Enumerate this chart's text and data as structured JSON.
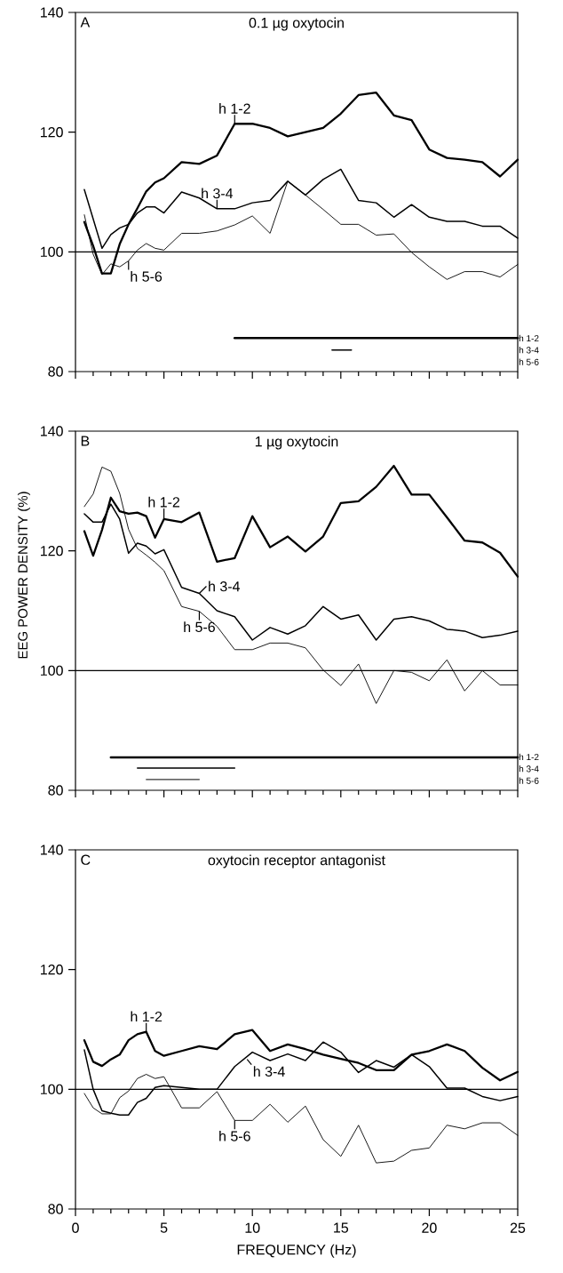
{
  "chart_data": [
    {
      "type": "line",
      "title": "0.1 µg oxytocin",
      "tick_labels": "y",
      "marker": "none",
      "x": [
        0.5,
        1,
        1.5,
        2,
        2.5,
        3,
        3.5,
        4,
        4.5,
        5,
        6,
        7,
        8,
        9,
        10,
        11,
        12,
        13,
        14,
        15,
        16,
        17,
        18,
        19,
        20,
        21,
        22,
        23,
        24,
        25
      ],
      "xlim": [
        0,
        25
      ],
      "ylim": [
        80,
        140
      ],
      "xticks": [
        0,
        {
          "value": 1,
          "label": null
        },
        {
          "value": 2,
          "label": null
        },
        {
          "value": 3,
          "label": null
        },
        {
          "value": 4,
          "label": null
        },
        5,
        {
          "value": 6,
          "label": null
        },
        {
          "value": 7,
          "label": null
        },
        {
          "value": 8,
          "label": null
        },
        {
          "value": 9,
          "label": null
        },
        10,
        {
          "value": 11,
          "label": null
        },
        {
          "value": 12,
          "label": null
        },
        {
          "value": 13,
          "label": null
        },
        {
          "value": 14,
          "label": null
        },
        15,
        {
          "value": 16,
          "label": null
        },
        {
          "value": 17,
          "label": null
        },
        {
          "value": 18,
          "label": null
        },
        {
          "value": 19,
          "label": null
        },
        20,
        {
          "value": 21,
          "label": null
        },
        {
          "value": 22,
          "label": null
        },
        {
          "value": 23,
          "label": null
        },
        {
          "value": 24,
          "label": null
        },
        25
      ],
      "yticks": [
        80,
        100,
        120,
        140
      ],
      "ref_lines": [
        {
          "axis": "y",
          "value": 100,
          "color": "#000000"
        }
      ],
      "annotations": [
        "A",
        "h 1-2",
        "h 3-4",
        "h 5-6",
        {
          "text": "h 1-2",
          "x": 9,
          "y": 121.4
        },
        {
          "text": "h 3-4",
          "x": 8,
          "y": 107.2
        },
        {
          "text": "h 5-6",
          "x": 3,
          "y": 98.5
        }
      ],
      "series": [
        {
          "color": "#000000",
          "values": [
            105.0,
            101.0,
            96.4,
            96.4,
            101.3,
            104.6,
            107.3,
            110.1,
            111.6,
            112.3,
            115.0,
            114.7,
            116.1,
            121.4,
            121.4,
            120.7,
            119.3,
            120.0,
            120.7,
            123.1,
            126.2,
            126.6,
            122.8,
            122.0,
            117.1,
            115.7,
            115.4,
            115.0,
            112.6,
            115.4
          ]
        },
        {
          "color": "#000000",
          "values": [
            110.4,
            105.5,
            100.6,
            102.9,
            104.0,
            104.6,
            106.5,
            107.5,
            107.5,
            106.5,
            110.0,
            109.0,
            107.2,
            107.2,
            108.2,
            108.6,
            111.8,
            109.5,
            112.1,
            113.8,
            108.6,
            108.2,
            105.8,
            107.9,
            105.8,
            105.1,
            105.1,
            104.3,
            104.3,
            102.3
          ]
        },
        {
          "color": "#000000",
          "values": [
            106.2,
            99.6,
            96.2,
            98.0,
            97.5,
            98.5,
            100.3,
            101.4,
            100.6,
            100.3,
            103.1,
            103.1,
            103.5,
            104.5,
            106.0,
            103.1,
            111.8,
            109.5,
            107.1,
            104.6,
            104.6,
            102.8,
            103.0,
            99.9,
            97.5,
            95.4,
            96.7,
            96.7,
            95.8,
            97.9
          ]
        },
        {
          "color": "#000000",
          "x": [
            9,
            25
          ],
          "values": [
            85.6,
            85.6
          ]
        },
        {
          "color": "#000000",
          "x": [
            14.5,
            15.6
          ],
          "values": [
            83.6,
            83.6
          ]
        }
      ]
    },
    {
      "type": "line",
      "title": "1 µg oxytocin",
      "ylabel": "EEG POWER DENSITY (%)",
      "tick_labels": "y",
      "marker": "none",
      "x": [
        0.5,
        1,
        1.5,
        2,
        2.5,
        3,
        3.5,
        4,
        4.5,
        5,
        6,
        7,
        8,
        9,
        10,
        11,
        12,
        13,
        14,
        15,
        16,
        17,
        18,
        19,
        20,
        21,
        22,
        23,
        24,
        25
      ],
      "xlim": [
        0,
        25
      ],
      "ylim": [
        80,
        140
      ],
      "xticks": [
        0,
        {
          "value": 1,
          "label": null
        },
        {
          "value": 2,
          "label": null
        },
        {
          "value": 3,
          "label": null
        },
        {
          "value": 4,
          "label": null
        },
        5,
        {
          "value": 6,
          "label": null
        },
        {
          "value": 7,
          "label": null
        },
        {
          "value": 8,
          "label": null
        },
        {
          "value": 9,
          "label": null
        },
        10,
        {
          "value": 11,
          "label": null
        },
        {
          "value": 12,
          "label": null
        },
        {
          "value": 13,
          "label": null
        },
        {
          "value": 14,
          "label": null
        },
        15,
        {
          "value": 16,
          "label": null
        },
        {
          "value": 17,
          "label": null
        },
        {
          "value": 18,
          "label": null
        },
        {
          "value": 19,
          "label": null
        },
        20,
        {
          "value": 21,
          "label": null
        },
        {
          "value": 22,
          "label": null
        },
        {
          "value": 23,
          "label": null
        },
        {
          "value": 24,
          "label": null
        },
        25
      ],
      "yticks": [
        80,
        100,
        120,
        140
      ],
      "ref_lines": [
        {
          "axis": "y",
          "value": 100,
          "color": "#000000"
        }
      ],
      "annotations": [
        "B",
        "h 1-2",
        "h 3-4",
        "h 5-6",
        {
          "text": "h 1-2",
          "x": 5,
          "y": 125.3
        },
        {
          "text": "h 3-4",
          "x": 7,
          "y": 112.9
        },
        {
          "text": "h 5-6",
          "x": 7,
          "y": 109.9
        }
      ],
      "series": [
        {
          "color": "#000000",
          "values": [
            123.3,
            119.2,
            123.5,
            128.9,
            126.6,
            126.2,
            126.4,
            125.8,
            122.2,
            125.3,
            124.8,
            126.4,
            118.2,
            118.8,
            125.8,
            120.6,
            122.4,
            119.9,
            122.4,
            128.0,
            128.3,
            130.7,
            134.2,
            129.4,
            129.4,
            125.6,
            121.7,
            121.4,
            119.7,
            115.7
          ]
        },
        {
          "color": "#000000",
          "values": [
            126.2,
            124.8,
            124.8,
            127.8,
            125.3,
            119.6,
            121.3,
            120.8,
            119.5,
            120.2,
            113.9,
            112.9,
            110.0,
            109.0,
            105.1,
            107.2,
            106.1,
            107.5,
            110.7,
            108.6,
            109.3,
            105.1,
            108.6,
            109.0,
            108.3,
            106.9,
            106.6,
            105.5,
            105.9,
            106.6
          ]
        },
        {
          "color": "#000000",
          "values": [
            127.4,
            129.5,
            134.0,
            133.3,
            129.6,
            123.6,
            120.4,
            119.3,
            118.1,
            116.7,
            110.7,
            109.9,
            107.4,
            103.5,
            103.5,
            104.6,
            104.6,
            103.8,
            100.1,
            97.5,
            101.1,
            94.5,
            100.0,
            99.7,
            98.3,
            101.8,
            96.6,
            100.0,
            97.6,
            97.6
          ]
        },
        {
          "color": "#000000",
          "x": [
            2,
            25
          ],
          "values": [
            85.5,
            85.5
          ]
        },
        {
          "color": "#000000",
          "x": [
            3.5,
            9
          ],
          "values": [
            83.7,
            83.7
          ]
        },
        {
          "color": "#000000",
          "x": [
            4,
            7
          ],
          "values": [
            81.8,
            81.8
          ]
        }
      ]
    },
    {
      "type": "line",
      "title": "oxytocin receptor antagonist",
      "xlabel": "FREQUENCY (Hz)",
      "marker": "none",
      "x": [
        0.5,
        1,
        1.5,
        2,
        2.5,
        3,
        3.5,
        4,
        4.5,
        5,
        6,
        7,
        8,
        9,
        10,
        11,
        12,
        13,
        14,
        15,
        16,
        17,
        18,
        19,
        20,
        21,
        22,
        23,
        24,
        25
      ],
      "xlim": [
        0,
        25
      ],
      "ylim": [
        80,
        140
      ],
      "xticks": [
        0,
        {
          "value": 1,
          "label": null
        },
        {
          "value": 2,
          "label": null
        },
        {
          "value": 3,
          "label": null
        },
        {
          "value": 4,
          "label": null
        },
        5,
        {
          "value": 6,
          "label": null
        },
        {
          "value": 7,
          "label": null
        },
        {
          "value": 8,
          "label": null
        },
        {
          "value": 9,
          "label": null
        },
        10,
        {
          "value": 11,
          "label": null
        },
        {
          "value": 12,
          "label": null
        },
        {
          "value": 13,
          "label": null
        },
        {
          "value": 14,
          "label": null
        },
        15,
        {
          "value": 16,
          "label": null
        },
        {
          "value": 17,
          "label": null
        },
        {
          "value": 18,
          "label": null
        },
        {
          "value": 19,
          "label": null
        },
        20,
        {
          "value": 21,
          "label": null
        },
        {
          "value": 22,
          "label": null
        },
        {
          "value": 23,
          "label": null
        },
        {
          "value": 24,
          "label": null
        },
        25
      ],
      "yticks": [
        80,
        100,
        120,
        140
      ],
      "ref_lines": [
        {
          "axis": "y",
          "value": 100,
          "color": "#000000"
        }
      ],
      "annotations": [
        "C",
        {
          "text": "h 1-2",
          "x": 4,
          "y": 109.6
        },
        {
          "text": "h 3-4",
          "x": 9.7,
          "y": 105.0
        },
        {
          "text": "h 5-6",
          "x": 9,
          "y": 94.8
        }
      ],
      "series": [
        {
          "color": "#000000",
          "values": [
            108.2,
            104.6,
            103.9,
            105.0,
            105.8,
            108.2,
            109.2,
            109.6,
            106.4,
            105.6,
            106.4,
            107.2,
            106.7,
            109.2,
            109.9,
            106.4,
            107.5,
            106.7,
            105.8,
            105.1,
            104.4,
            103.2,
            103.2,
            105.8,
            106.4,
            107.5,
            106.4,
            103.6,
            101.5,
            102.9
          ]
        },
        {
          "color": "#000000",
          "values": [
            106.6,
            100.0,
            96.4,
            96.0,
            95.7,
            95.7,
            97.8,
            98.5,
            100.3,
            100.6,
            100.3,
            100.0,
            100.0,
            103.8,
            106.2,
            104.8,
            105.9,
            104.8,
            107.9,
            106.2,
            102.8,
            104.8,
            103.7,
            105.8,
            103.8,
            100.2,
            100.2,
            98.8,
            98.1,
            98.8
          ]
        },
        {
          "color": "#000000",
          "values": [
            99.3,
            96.9,
            95.9,
            95.9,
            98.6,
            99.7,
            101.8,
            102.5,
            101.8,
            102.1,
            96.9,
            96.9,
            99.6,
            94.8,
            94.8,
            97.5,
            94.5,
            97.2,
            91.6,
            88.8,
            94.0,
            87.7,
            88.0,
            89.8,
            90.2,
            94.0,
            93.4,
            94.4,
            94.4,
            92.3
          ]
        }
      ]
    }
  ]
}
